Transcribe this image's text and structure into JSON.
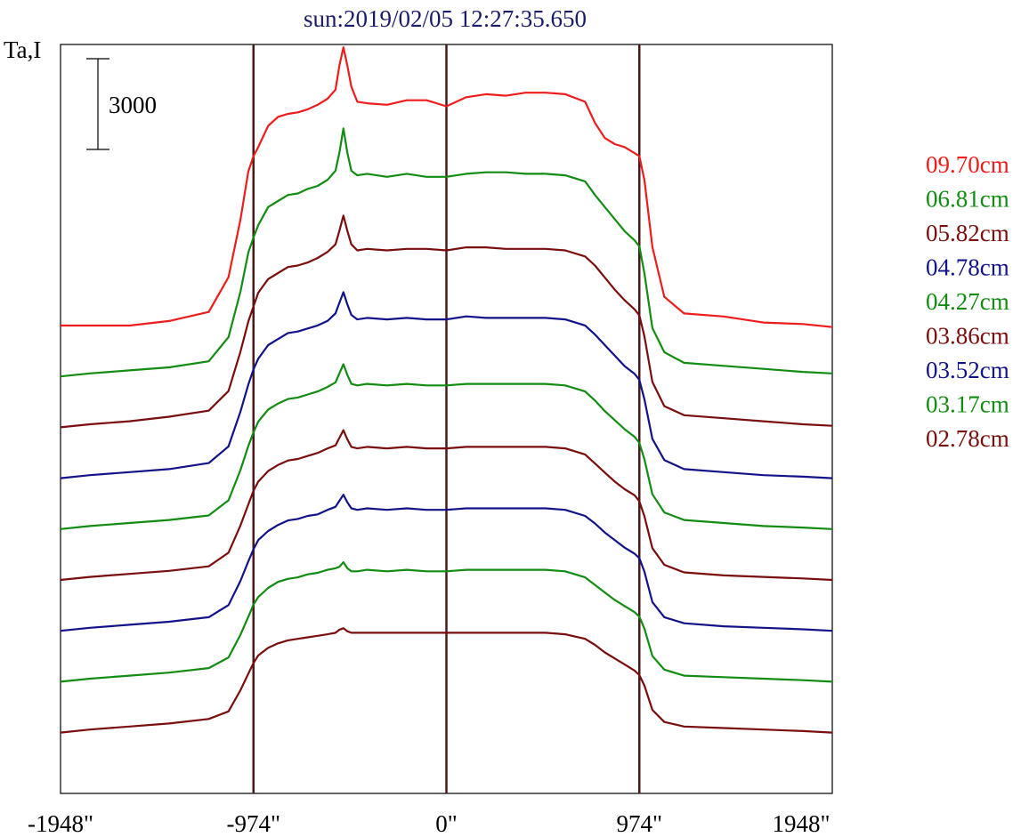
{
  "chart_data": {
    "type": "line",
    "title": "sun:2019/02/05 12:27:35.650",
    "ylabel": "Ta,I",
    "scale_bar_label": "3000",
    "x_unit": "arcsec",
    "xlim": [
      -1948,
      1948
    ],
    "x_ticks": [
      {
        "value": -1948,
        "label": "-1948\""
      },
      {
        "value": -974,
        "label": "-974\""
      },
      {
        "value": 0,
        "label": "0\""
      },
      {
        "value": 974,
        "label": "974\""
      },
      {
        "value": 1948,
        "label": "1948\""
      }
    ],
    "vertical_lines_at": [
      -974,
      0,
      974
    ],
    "grid": false,
    "legend_position": "right",
    "x": [
      -1948,
      -1800,
      -1600,
      -1400,
      -1200,
      -1100,
      -1040,
      -1000,
      -974,
      -950,
      -900,
      -850,
      -800,
      -750,
      -700,
      -650,
      -600,
      -560,
      -540,
      -520,
      -500,
      -480,
      -450,
      -400,
      -300,
      -200,
      -100,
      0,
      100,
      200,
      300,
      400,
      500,
      600,
      700,
      750,
      800,
      850,
      900,
      950,
      974,
      1000,
      1040,
      1100,
      1200,
      1400,
      1600,
      1800,
      1948
    ],
    "series": [
      {
        "name": "09.70cm",
        "color": "#ee1c1c",
        "offset": 0,
        "values": [
          0,
          0,
          0,
          150,
          450,
          1600,
          3500,
          5100,
          5600,
          5900,
          6600,
          6900,
          7000,
          7050,
          7150,
          7300,
          7500,
          7800,
          8600,
          9200,
          8600,
          7900,
          7400,
          7350,
          7300,
          7450,
          7450,
          7250,
          7550,
          7650,
          7600,
          7700,
          7700,
          7650,
          7400,
          6700,
          6200,
          6000,
          5900,
          5700,
          5600,
          4800,
          2600,
          950,
          400,
          300,
          100,
          50,
          -50
        ]
      },
      {
        "name": "06.81cm",
        "color": "#128c12",
        "offset": 1,
        "values": [
          0,
          100,
          200,
          300,
          500,
          1300,
          2800,
          4100,
          4600,
          5000,
          5600,
          5800,
          6000,
          6050,
          6200,
          6300,
          6500,
          6800,
          7400,
          8200,
          7400,
          6800,
          6650,
          6700,
          6600,
          6700,
          6600,
          6600,
          6700,
          6750,
          6750,
          6700,
          6700,
          6650,
          6450,
          6000,
          5600,
          5200,
          4800,
          4500,
          4300,
          3400,
          1600,
          800,
          450,
          350,
          250,
          150,
          100
        ]
      },
      {
        "name": "05.82cm",
        "color": "#7a0d0d",
        "offset": 2,
        "values": [
          0,
          100,
          200,
          350,
          550,
          1200,
          2500,
          3500,
          4000,
          4450,
          4900,
          5100,
          5300,
          5350,
          5450,
          5600,
          5800,
          6050,
          6500,
          7000,
          6500,
          6050,
          5850,
          5900,
          5850,
          5900,
          5900,
          5850,
          5950,
          5950,
          5900,
          5900,
          5900,
          5850,
          5650,
          5350,
          4950,
          4550,
          4200,
          3900,
          3700,
          3000,
          1500,
          700,
          400,
          300,
          200,
          100,
          50
        ]
      },
      {
        "name": "04.78cm",
        "color": "#121289",
        "offset": 3,
        "values": [
          0,
          100,
          200,
          300,
          500,
          1050,
          2200,
          3100,
          3600,
          3950,
          4400,
          4600,
          4800,
          4850,
          4950,
          5050,
          5200,
          5450,
          5800,
          6150,
          5750,
          5400,
          5250,
          5300,
          5250,
          5300,
          5250,
          5250,
          5350,
          5300,
          5300,
          5300,
          5300,
          5250,
          5050,
          4750,
          4400,
          4050,
          3700,
          3450,
          3250,
          2600,
          1300,
          600,
          300,
          200,
          100,
          50,
          0
        ]
      },
      {
        "name": "04.27cm",
        "color": "#128c12",
        "offset": 4,
        "values": [
          0,
          100,
          200,
          300,
          450,
          950,
          1950,
          2750,
          3200,
          3550,
          3950,
          4150,
          4300,
          4350,
          4450,
          4550,
          4700,
          4850,
          5150,
          5450,
          5100,
          4800,
          4750,
          4800,
          4750,
          4800,
          4750,
          4750,
          4800,
          4800,
          4800,
          4800,
          4800,
          4750,
          4550,
          4250,
          3900,
          3600,
          3300,
          3050,
          2850,
          2300,
          1150,
          550,
          300,
          200,
          100,
          50,
          0
        ]
      },
      {
        "name": "03.86cm",
        "color": "#7a0d0d",
        "offset": 5,
        "values": [
          0,
          100,
          200,
          300,
          450,
          900,
          1800,
          2500,
          2950,
          3250,
          3600,
          3800,
          3950,
          4000,
          4100,
          4200,
          4350,
          4450,
          4700,
          4950,
          4650,
          4400,
          4350,
          4400,
          4350,
          4400,
          4350,
          4350,
          4400,
          4400,
          4400,
          4400,
          4400,
          4350,
          4150,
          3850,
          3550,
          3250,
          3000,
          2800,
          2600,
          2100,
          1050,
          500,
          250,
          150,
          100,
          50,
          0
        ]
      },
      {
        "name": "03.52cm",
        "color": "#121289",
        "offset": 6,
        "values": [
          0,
          100,
          200,
          300,
          450,
          850,
          1650,
          2300,
          2700,
          3000,
          3300,
          3500,
          3650,
          3700,
          3800,
          3850,
          4000,
          4100,
          4300,
          4500,
          4250,
          4050,
          4000,
          4050,
          4000,
          4050,
          4000,
          4000,
          4050,
          4050,
          4050,
          4050,
          4050,
          4000,
          3800,
          3550,
          3250,
          3000,
          2750,
          2550,
          2400,
          1950,
          950,
          450,
          250,
          150,
          100,
          50,
          0
        ]
      },
      {
        "name": "03.17cm",
        "color": "#128c12",
        "offset": 7,
        "values": [
          0,
          100,
          200,
          300,
          450,
          800,
          1550,
          2150,
          2550,
          2800,
          3100,
          3300,
          3400,
          3450,
          3550,
          3600,
          3700,
          3750,
          3800,
          3950,
          3750,
          3650,
          3650,
          3700,
          3650,
          3700,
          3650,
          3650,
          3700,
          3700,
          3700,
          3700,
          3700,
          3650,
          3450,
          3200,
          2950,
          2700,
          2500,
          2300,
          2150,
          1750,
          850,
          400,
          200,
          150,
          100,
          50,
          0
        ]
      },
      {
        "name": "02.78cm",
        "color": "#7a0d0d",
        "offset": 8,
        "values": [
          0,
          100,
          200,
          300,
          450,
          700,
          1400,
          1950,
          2300,
          2550,
          2800,
          2950,
          3050,
          3100,
          3150,
          3200,
          3250,
          3300,
          3400,
          3450,
          3350,
          3300,
          3300,
          3300,
          3300,
          3300,
          3300,
          3300,
          3300,
          3300,
          3300,
          3300,
          3300,
          3250,
          3100,
          2900,
          2650,
          2450,
          2250,
          2050,
          1900,
          1550,
          750,
          350,
          200,
          150,
          100,
          50,
          0
        ]
      }
    ]
  }
}
